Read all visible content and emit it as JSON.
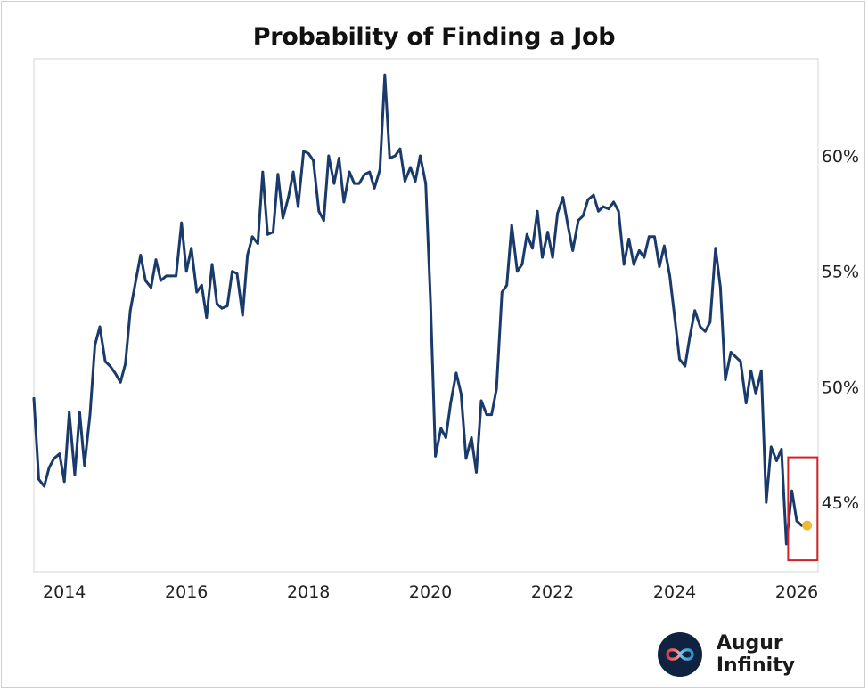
{
  "chart_data": {
    "type": "line",
    "title": "Probability of Finding a Job",
    "xlabel": "",
    "ylabel": "",
    "ylim": [
      42.0,
      64.2
    ],
    "xlim": [
      2013.5,
      2026.35
    ],
    "y_axis_side": "right",
    "y_ticks": [
      45,
      50,
      55,
      60
    ],
    "y_tick_labels": [
      "45%",
      "50%",
      "55%",
      "60%"
    ],
    "x_ticks": [
      2014,
      2016,
      2018,
      2020,
      2022,
      2024,
      2026
    ],
    "x_tick_labels": [
      "2014",
      "2016",
      "2018",
      "2020",
      "2022",
      "2024",
      "2026"
    ],
    "grid": false,
    "series": [
      {
        "name": "Probability of Finding a Job",
        "color": "#1a3a6b",
        "x": [
          2013.5,
          2013.58,
          2013.67,
          2013.75,
          2013.83,
          2013.92,
          2014.0,
          2014.08,
          2014.17,
          2014.25,
          2014.33,
          2014.42,
          2014.5,
          2014.58,
          2014.67,
          2014.75,
          2014.83,
          2014.92,
          2015.0,
          2015.08,
          2015.17,
          2015.25,
          2015.33,
          2015.42,
          2015.5,
          2015.58,
          2015.67,
          2015.75,
          2015.83,
          2015.92,
          2016.0,
          2016.08,
          2016.17,
          2016.25,
          2016.33,
          2016.42,
          2016.5,
          2016.58,
          2016.67,
          2016.75,
          2016.83,
          2016.92,
          2017.0,
          2017.08,
          2017.17,
          2017.25,
          2017.33,
          2017.42,
          2017.5,
          2017.58,
          2017.67,
          2017.75,
          2017.83,
          2017.92,
          2018.0,
          2018.08,
          2018.17,
          2018.25,
          2018.33,
          2018.42,
          2018.5,
          2018.58,
          2018.67,
          2018.75,
          2018.83,
          2018.92,
          2019.0,
          2019.08,
          2019.17,
          2019.25,
          2019.33,
          2019.42,
          2019.5,
          2019.58,
          2019.67,
          2019.75,
          2019.83,
          2019.92,
          2020.0,
          2020.08,
          2020.17,
          2020.25,
          2020.33,
          2020.42,
          2020.5,
          2020.58,
          2020.67,
          2020.75,
          2020.83,
          2020.92,
          2021.0,
          2021.08,
          2021.17,
          2021.25,
          2021.33,
          2021.42,
          2021.5,
          2021.58,
          2021.67,
          2021.75,
          2021.83,
          2021.92,
          2022.0,
          2022.08,
          2022.17,
          2022.25,
          2022.33,
          2022.42,
          2022.5,
          2022.58,
          2022.67,
          2022.75,
          2022.83,
          2022.92,
          2023.0,
          2023.08,
          2023.17,
          2023.25,
          2023.33,
          2023.42,
          2023.5,
          2023.58,
          2023.67,
          2023.75,
          2023.83,
          2023.92,
          2024.0,
          2024.08,
          2024.17,
          2024.25,
          2024.33,
          2024.42,
          2024.5,
          2024.58,
          2024.67,
          2024.75,
          2024.83,
          2024.92,
          2025.0,
          2025.08,
          2025.17,
          2025.25,
          2025.33,
          2025.42,
          2025.5,
          2025.58,
          2025.67,
          2025.75,
          2025.83,
          2025.92,
          2026.0,
          2026.08
        ],
        "values": [
          49.5,
          46.0,
          45.7,
          46.5,
          46.9,
          47.1,
          45.9,
          48.9,
          46.2,
          48.9,
          46.6,
          48.8,
          51.8,
          52.6,
          51.1,
          50.9,
          50.6,
          50.2,
          51.0,
          53.3,
          54.6,
          55.7,
          54.6,
          54.3,
          55.5,
          54.6,
          54.8,
          54.8,
          54.8,
          57.1,
          55.0,
          56.0,
          54.1,
          54.4,
          53.0,
          55.3,
          53.6,
          53.4,
          53.5,
          55.0,
          54.9,
          53.1,
          55.7,
          56.5,
          56.2,
          59.3,
          56.6,
          56.7,
          59.2,
          57.3,
          58.2,
          59.3,
          57.8,
          60.2,
          60.1,
          59.8,
          57.6,
          57.2,
          60.0,
          58.8,
          59.9,
          58.0,
          59.3,
          58.8,
          58.8,
          59.2,
          59.3,
          58.6,
          59.4,
          63.5,
          59.9,
          60.0,
          60.3,
          58.9,
          59.5,
          58.9,
          60.0,
          58.8,
          53.7,
          47.0,
          48.2,
          47.8,
          49.3,
          50.6,
          49.7,
          46.9,
          47.8,
          46.3,
          49.4,
          48.8,
          48.8,
          49.9,
          54.1,
          54.4,
          57.0,
          55.0,
          55.3,
          56.6,
          56.0,
          57.6,
          55.6,
          56.7,
          55.6,
          57.5,
          58.2,
          57.0,
          55.9,
          57.2,
          57.4,
          58.1,
          58.3,
          57.6,
          57.8,
          57.7,
          58.0,
          57.6,
          55.3,
          56.4,
          55.3,
          55.9,
          55.6,
          56.5,
          56.5,
          55.2,
          56.1,
          54.8,
          53.0,
          51.2,
          50.9,
          52.2,
          53.3,
          52.6,
          52.4,
          52.8,
          56.0,
          54.3,
          50.3,
          51.5,
          51.3,
          51.1,
          49.3,
          50.7,
          49.7,
          50.7,
          45.0,
          47.4,
          46.8,
          47.3,
          43.2,
          45.5,
          44.2,
          44.0
        ]
      }
    ],
    "highlight": {
      "point_x": 2026.17,
      "point_y": 44.0,
      "point_color": "#f0b93a",
      "box_color": "#d0222b",
      "box_x_range": [
        2025.86,
        2026.34
      ],
      "box_y_range": [
        42.5,
        46.95
      ]
    }
  },
  "brand": {
    "name": "Augur Infinity",
    "logo_icon": "infinity-icon",
    "logo_bg": "#0f2340"
  }
}
